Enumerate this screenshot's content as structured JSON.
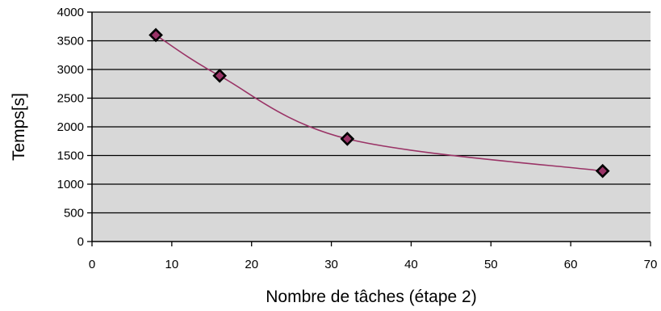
{
  "chart_data": {
    "type": "scatter",
    "title": "",
    "xlabel": "Nombre de tâches (étape 2)",
    "ylabel": "Temps[s]",
    "xlim": [
      0,
      70
    ],
    "ylim": [
      0,
      4000
    ],
    "x_ticks": [
      0,
      10,
      20,
      30,
      40,
      50,
      60,
      70
    ],
    "y_ticks": [
      0,
      500,
      1000,
      1500,
      2000,
      2500,
      3000,
      3500,
      4000
    ],
    "x_tick_labels": [
      "0",
      "10",
      "20",
      "30",
      "40",
      "50",
      "60",
      "70"
    ],
    "y_tick_labels": [
      "0",
      "500",
      "1000",
      "1500",
      "2000",
      "2500",
      "3000",
      "3500",
      "4000"
    ],
    "grid": "horizontal",
    "legend": "none",
    "series": [
      {
        "x": [
          8,
          16,
          32,
          64
        ],
        "y": [
          3600,
          2890,
          1790,
          1230
        ],
        "line": "smooth",
        "marker": "diamond"
      }
    ],
    "colors": {
      "plot_background": "#d8d8d8",
      "line": "#9a3366",
      "marker_fill": "#993366",
      "marker_edge": "#000000",
      "gridline": "#000000"
    }
  }
}
